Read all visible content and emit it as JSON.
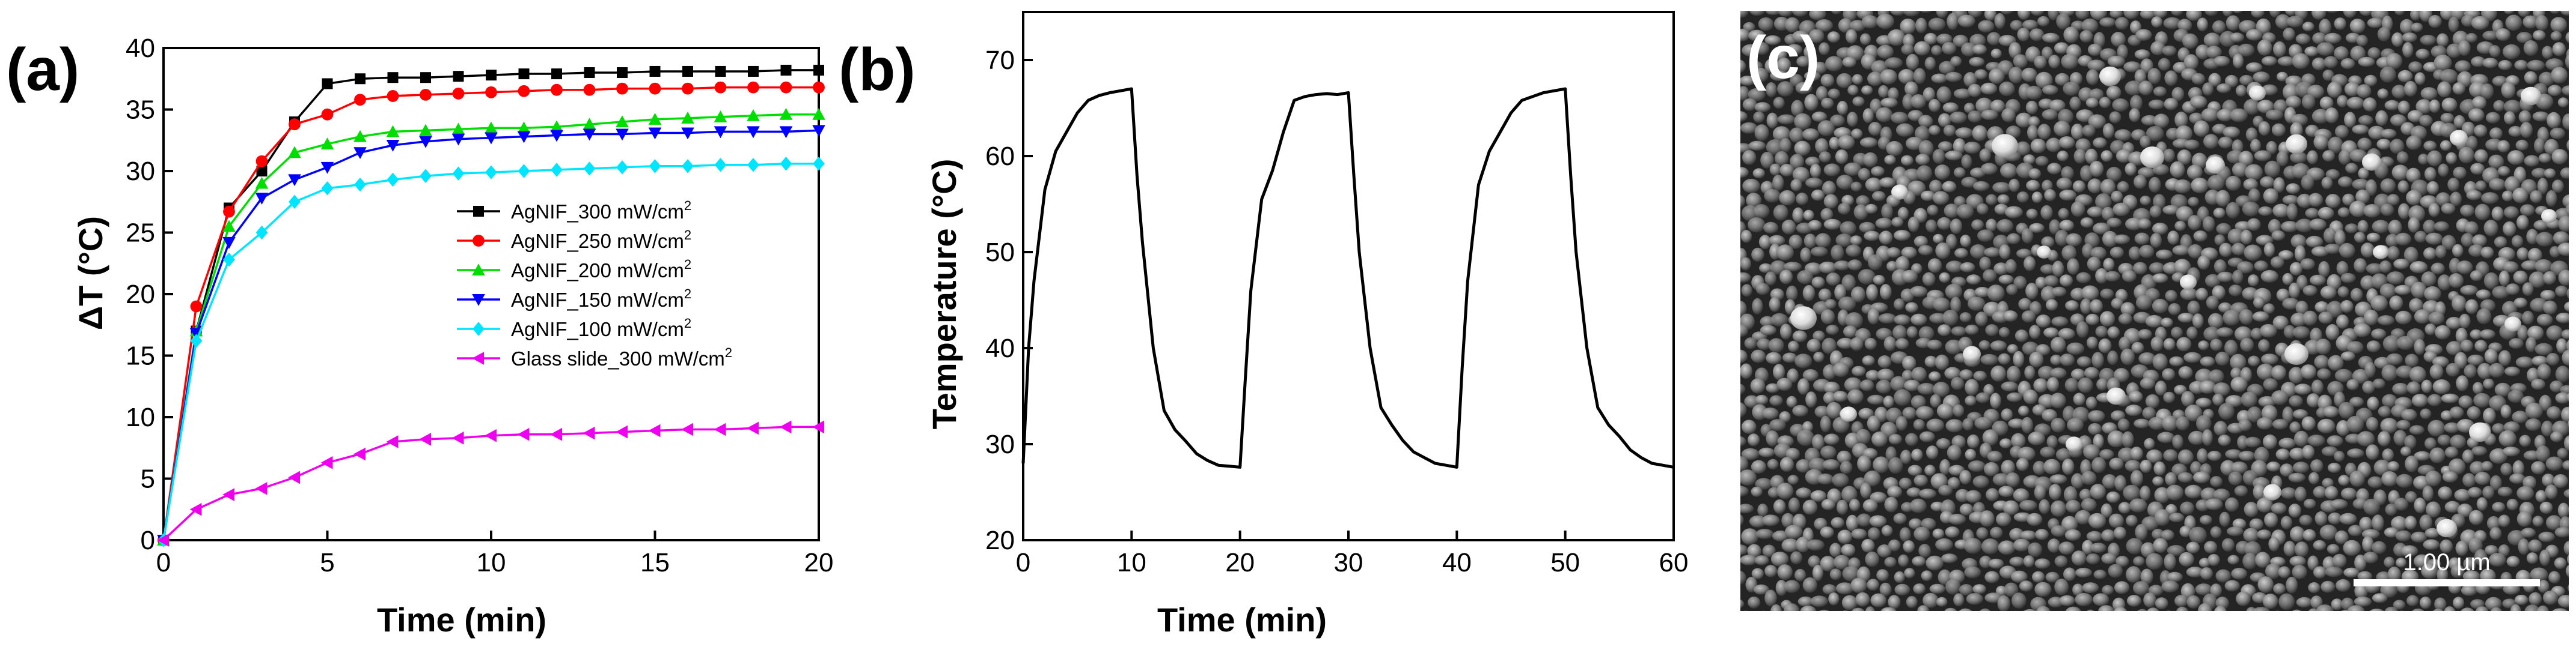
{
  "panels": [
    {
      "letter": "(a)",
      "chart_data": {
        "type": "line",
        "xlabel_main": "Time (min)",
        "ylabel_prefix": "ΔT (",
        "ylabel_unit": "°C",
        "ylabel_suffix": ")",
        "xlim": [
          0,
          20
        ],
        "ylim": [
          0,
          40
        ],
        "xticks": [
          0,
          5,
          10,
          15,
          20
        ],
        "yticks": [
          0,
          5,
          10,
          15,
          20,
          25,
          30,
          35,
          40
        ],
        "grid": false,
        "legend_position": "center-right",
        "series": [
          {
            "name": "AgNIF_300 mW/cm",
            "sup": "2",
            "color": "#000000",
            "marker": "square",
            "x": [
              0,
              1,
              2,
              3,
              4,
              5,
              6,
              7,
              8,
              9,
              10,
              11,
              12,
              13,
              14,
              15,
              16,
              17,
              18,
              19,
              20
            ],
            "y": [
              0,
              17,
              27,
              30,
              34,
              37.1,
              37.5,
              37.6,
              37.6,
              37.7,
              37.8,
              37.9,
              37.9,
              38.0,
              38.0,
              38.1,
              38.1,
              38.1,
              38.1,
              38.2,
              38.2
            ]
          },
          {
            "name": "AgNIF_250 mW/cm",
            "sup": "2",
            "color": "#ff0000",
            "marker": "circle",
            "x": [
              0,
              1,
              2,
              3,
              4,
              5,
              6,
              7,
              8,
              9,
              10,
              11,
              12,
              13,
              14,
              15,
              16,
              17,
              18,
              19,
              20
            ],
            "y": [
              0,
              19,
              26.7,
              30.8,
              33.8,
              34.6,
              35.8,
              36.1,
              36.2,
              36.3,
              36.4,
              36.5,
              36.6,
              36.6,
              36.7,
              36.7,
              36.7,
              36.8,
              36.8,
              36.8,
              36.8
            ]
          },
          {
            "name": "AgNIF_200 mW/cm",
            "sup": "2",
            "color": "#00dd00",
            "marker": "triangle-up",
            "x": [
              0,
              1,
              2,
              3,
              4,
              5,
              6,
              7,
              8,
              9,
              10,
              11,
              12,
              13,
              14,
              15,
              16,
              17,
              18,
              19,
              20
            ],
            "y": [
              0,
              17,
              25.5,
              29,
              31.5,
              32.2,
              32.8,
              33.2,
              33.3,
              33.4,
              33.5,
              33.5,
              33.6,
              33.8,
              34.0,
              34.2,
              34.3,
              34.4,
              34.5,
              34.6,
              34.6
            ]
          },
          {
            "name": "AgNIF_150 mW/cm",
            "sup": "2",
            "color": "#0000ff",
            "marker": "triangle-down",
            "x": [
              0,
              1,
              2,
              3,
              4,
              5,
              6,
              7,
              8,
              9,
              10,
              11,
              12,
              13,
              14,
              15,
              16,
              17,
              18,
              19,
              20
            ],
            "y": [
              0,
              16.8,
              24.2,
              27.8,
              29.3,
              30.3,
              31.5,
              32.1,
              32.4,
              32.6,
              32.7,
              32.8,
              32.9,
              33.0,
              33.0,
              33.1,
              33.1,
              33.2,
              33.2,
              33.2,
              33.3
            ]
          },
          {
            "name": "AgNIF_100 mW/cm",
            "sup": "2",
            "color": "#00e5ff",
            "marker": "diamond",
            "x": [
              0,
              1,
              2,
              3,
              4,
              5,
              6,
              7,
              8,
              9,
              10,
              11,
              12,
              13,
              14,
              15,
              16,
              17,
              18,
              19,
              20
            ],
            "y": [
              0,
              16.2,
              22.8,
              25,
              27.5,
              28.6,
              28.9,
              29.3,
              29.6,
              29.8,
              29.9,
              30.0,
              30.1,
              30.2,
              30.3,
              30.4,
              30.4,
              30.5,
              30.5,
              30.6,
              30.6
            ]
          },
          {
            "name": "Glass slide_300 mW/cm",
            "sup": "2",
            "color": "#ee00ee",
            "marker": "triangle-left",
            "x": [
              0,
              1,
              2,
              3,
              4,
              5,
              6,
              7,
              8,
              9,
              10,
              11,
              12,
              13,
              14,
              15,
              16,
              17,
              18,
              19,
              20
            ],
            "y": [
              0,
              2.5,
              3.7,
              4.2,
              5.1,
              6.3,
              7,
              8,
              8.2,
              8.3,
              8.5,
              8.6,
              8.6,
              8.7,
              8.8,
              8.9,
              9.0,
              9.0,
              9.1,
              9.2,
              9.2
            ]
          }
        ]
      }
    },
    {
      "letter": "(b)",
      "chart_data": {
        "type": "line",
        "xlabel_main": "Time (min)",
        "ylabel_prefix": "Temperature (",
        "ylabel_unit": "°C",
        "ylabel_suffix": ")",
        "xlim": [
          0,
          60
        ],
        "ylim": [
          20,
          75
        ],
        "xticks": [
          0,
          10,
          20,
          30,
          40,
          50,
          60
        ],
        "yticks": [
          20,
          30,
          40,
          50,
          60,
          70
        ],
        "grid": false,
        "series": [
          {
            "name": "",
            "color": "#000000",
            "marker": "none",
            "x": [
              0,
              0.5,
              1,
              2,
              3,
              4,
              5,
              6,
              7,
              8,
              9,
              10,
              10.5,
              11,
              12,
              13,
              14,
              15,
              16,
              17,
              18,
              19,
              20,
              20.5,
              21,
              22,
              23,
              24,
              25,
              26,
              27,
              28,
              29,
              30,
              30.5,
              31,
              32,
              33,
              34,
              35,
              36,
              37,
              38,
              39,
              40,
              40.5,
              41,
              42,
              43,
              44,
              45,
              46,
              47,
              48,
              49,
              50,
              50.5,
              51,
              52,
              53,
              54,
              55,
              56,
              57,
              58,
              59,
              60
            ],
            "y": [
              28,
              40,
              47,
              56.5,
              60.5,
              62.5,
              64.5,
              65.8,
              66.3,
              66.6,
              66.8,
              67,
              58,
              51,
              40,
              33.5,
              31.5,
              30.3,
              29,
              28.3,
              27.8,
              27.7,
              27.6,
              37,
              46,
              55.5,
              58.5,
              62.5,
              65.8,
              66.2,
              66.4,
              66.5,
              66.4,
              66.6,
              58,
              50,
              40,
              33.8,
              32,
              30.4,
              29.2,
              28.6,
              28,
              27.8,
              27.6,
              38,
              47,
              57,
              60.5,
              62.5,
              64.5,
              65.8,
              66.2,
              66.6,
              66.8,
              67,
              58,
              50,
              40,
              33.8,
              32,
              30.8,
              29.4,
              28.6,
              28,
              27.8,
              27.6
            ]
          }
        ]
      }
    },
    {
      "letter": "(c)",
      "scale_bar_label": "1.00 µm"
    }
  ]
}
